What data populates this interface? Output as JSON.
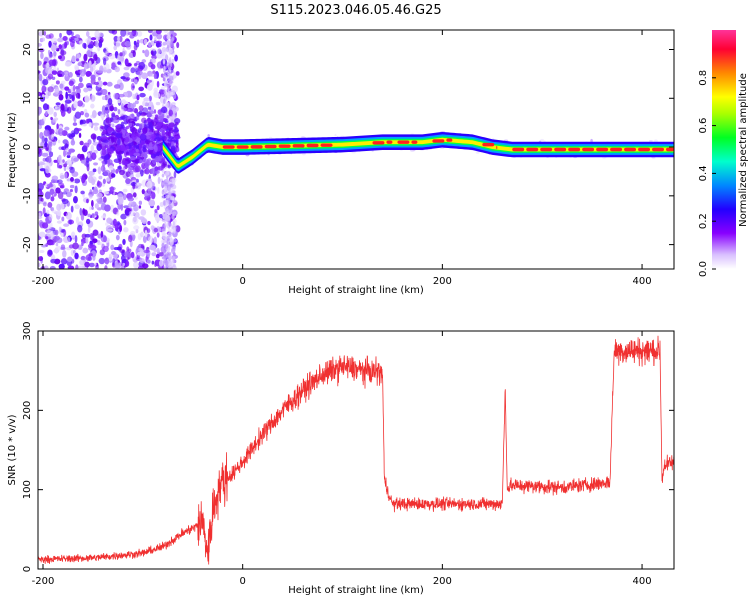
{
  "title": "S115.2023.046.05.46.G25",
  "chart_data": [
    {
      "type": "heatmap",
      "xlabel": "Height of straight line (km)",
      "ylabel": "Frequency (Hz)",
      "xlim": [
        -205,
        432
      ],
      "ylim": [
        -25,
        24
      ],
      "xticks": [
        -200,
        0,
        200,
        400
      ],
      "yticks": [
        -20,
        -10,
        0,
        10,
        20
      ],
      "colorbar": {
        "label": "Normalized spectral amplitude",
        "range": [
          0,
          1
        ],
        "ticks": [
          0.0,
          0.2,
          0.4,
          0.6,
          0.8
        ],
        "tick_labels": [
          "0.0",
          "0.2",
          "0.4",
          "0.6",
          "0.8"
        ],
        "colormap": [
          "#ffffff",
          "#d9bfff",
          "#8800ff",
          "#2200ff",
          "#00ccff",
          "#00ff44",
          "#ffff00",
          "#ff8800",
          "#ff0044",
          "#ff3399"
        ]
      },
      "ridge": {
        "description_points_x": [
          -205,
          -100,
          -80,
          -65,
          -50,
          -35,
          -20,
          0,
          100,
          140,
          180,
          200,
          230,
          250,
          270,
          432
        ],
        "description_points_freq": [
          1.0,
          2.0,
          0.0,
          -4.0,
          -2.0,
          0.5,
          0.0,
          0.0,
          0.5,
          1.0,
          1.0,
          1.5,
          1.0,
          0.0,
          -0.5,
          -0.5
        ]
      }
    },
    {
      "type": "line",
      "xlabel": "Height of straight line (km)",
      "ylabel": "SNR (10 * v/v)",
      "xlim": [
        -205,
        432
      ],
      "ylim": [
        0,
        300
      ],
      "xticks": [
        -200,
        0,
        200,
        400
      ],
      "yticks": [
        0,
        100,
        200,
        300
      ],
      "color": "#f03030",
      "series": [
        {
          "x": [
            -205,
            -150,
            -100,
            -80,
            -60,
            -45,
            -40,
            -35,
            -30,
            -25,
            -20,
            -10,
            0,
            20,
            40,
            60,
            80,
            100,
            120,
            140,
            142,
            145,
            150,
            160,
            200,
            240,
            260,
            263,
            265,
            268,
            280,
            320,
            360,
            368,
            372,
            380,
            400,
            418,
            420,
            422,
            432
          ],
          "y": [
            12,
            14,
            20,
            28,
            45,
            55,
            60,
            20,
            70,
            100,
            110,
            120,
            135,
            170,
            200,
            225,
            245,
            255,
            250,
            248,
            110,
            100,
            82,
            82,
            82,
            82,
            82,
            230,
            100,
            105,
            105,
            103,
            108,
            110,
            275,
            275,
            275,
            275,
            110,
            130,
            135
          ]
        }
      ]
    }
  ]
}
